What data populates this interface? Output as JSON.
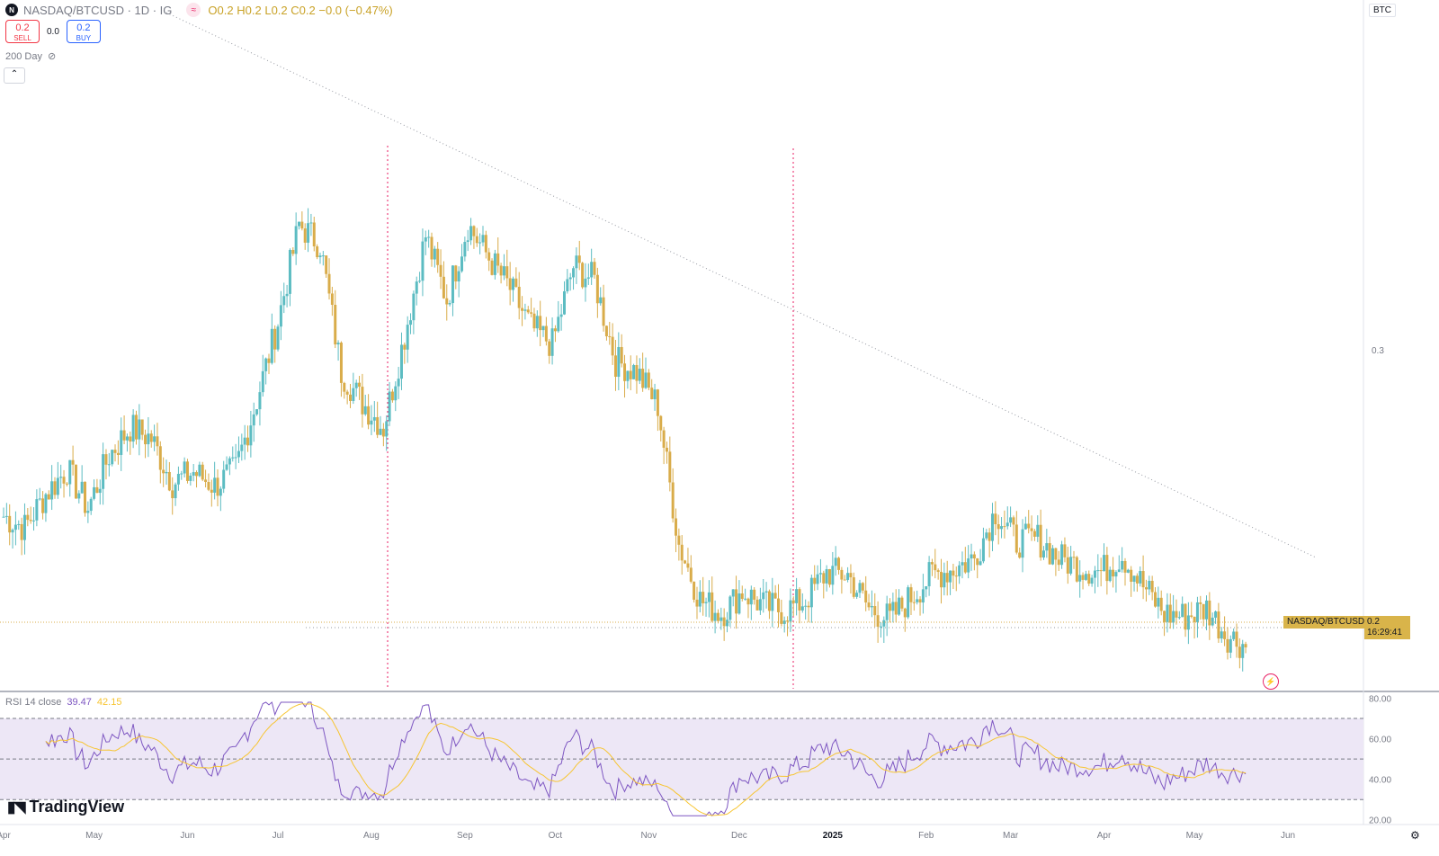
{
  "header": {
    "symbol": "NASDAQ/BTCUSD · 1D · IG",
    "o_label": "O",
    "o": "0.2",
    "h_label": "H",
    "h": "0.2",
    "l_label": "L",
    "l": "0.2",
    "c_label": "C",
    "c": "0.2",
    "change": "−0.0 (−0.47%)"
  },
  "trade": {
    "sell_price": "0.2",
    "sell_label": "SELL",
    "spread": "0.0",
    "buy_price": "0.2",
    "buy_label": "BUY"
  },
  "indicator": {
    "label": "200 Day"
  },
  "rsi": {
    "label": "RSI 14 close",
    "value": "39.47",
    "ma_value": "42.15"
  },
  "brand": {
    "name": "TradingView"
  },
  "currency_label": "BTC",
  "price_tag": {
    "name": "NASDAQ/BTCUSD",
    "value": "0.2",
    "countdown": "16:29:41"
  },
  "colors": {
    "up": "#5cbcc2",
    "down": "#d9ac4a",
    "rsi_line": "#7e57c2",
    "rsi_ma": "#f7c531",
    "band": "#ede7f6",
    "vline": "#e91e63"
  },
  "chart_data": [
    {
      "type": "candlestick",
      "title": "NASDAQ/BTCUSD",
      "interval": "1D",
      "y_ticks": [
        0.3,
        0.2
      ],
      "y_tick_labels": [
        "0.3",
        "0.2"
      ],
      "y_range": [
        0.178,
        0.42
      ],
      "x_tick_labels": [
        "Apr",
        "May",
        "Jun",
        "Jul",
        "Aug",
        "Sep",
        "Oct",
        "Nov",
        "Dec",
        "2025",
        "Feb",
        "Mar",
        "Apr",
        "May",
        "Jun"
      ],
      "x": [
        "2024-04-01",
        "2024-04-08",
        "2024-04-15",
        "2024-04-22",
        "2024-04-29",
        "2024-05-06",
        "2024-05-13",
        "2024-05-20",
        "2024-05-27",
        "2024-06-03",
        "2024-06-10",
        "2024-06-17",
        "2024-06-24",
        "2024-07-01",
        "2024-07-08",
        "2024-07-15",
        "2024-07-22",
        "2024-07-29",
        "2024-08-05",
        "2024-08-12",
        "2024-08-19",
        "2024-08-26",
        "2024-09-02",
        "2024-09-09",
        "2024-09-16",
        "2024-09-23",
        "2024-09-30",
        "2024-10-07",
        "2024-10-14",
        "2024-10-21",
        "2024-10-28",
        "2024-11-04",
        "2024-11-11",
        "2024-11-18",
        "2024-11-25",
        "2024-12-02",
        "2024-12-09",
        "2024-12-16",
        "2024-12-23",
        "2024-12-30",
        "2025-01-06",
        "2025-01-13",
        "2025-01-20",
        "2025-01-27",
        "2025-02-03",
        "2025-02-10",
        "2025-02-17",
        "2025-02-24",
        "2025-03-03",
        "2025-03-10",
        "2025-03-17",
        "2025-03-24",
        "2025-03-31",
        "2025-04-07",
        "2025-04-14",
        "2025-04-21",
        "2025-04-28",
        "2025-05-05",
        "2025-05-12",
        "2025-05-19"
      ],
      "close": [
        0.24,
        0.236,
        0.248,
        0.257,
        0.243,
        0.262,
        0.272,
        0.268,
        0.252,
        0.256,
        0.251,
        0.257,
        0.282,
        0.31,
        0.345,
        0.338,
        0.292,
        0.281,
        0.272,
        0.305,
        0.341,
        0.318,
        0.345,
        0.333,
        0.322,
        0.308,
        0.302,
        0.33,
        0.325,
        0.296,
        0.292,
        0.28,
        0.23,
        0.21,
        0.205,
        0.213,
        0.208,
        0.206,
        0.21,
        0.22,
        0.219,
        0.207,
        0.203,
        0.211,
        0.219,
        0.221,
        0.225,
        0.242,
        0.231,
        0.232,
        0.225,
        0.222,
        0.22,
        0.226,
        0.215,
        0.205,
        0.204,
        0.207,
        0.197,
        0.193
      ],
      "rsi_y_ticks": [
        80,
        60,
        40,
        20
      ],
      "rsi_y_tick_labels": [
        "80.00",
        "60.00",
        "40.00",
        "20.00"
      ],
      "rsi_bands": [
        70,
        50,
        30
      ],
      "rsi_range": [
        19,
        82
      ]
    }
  ]
}
